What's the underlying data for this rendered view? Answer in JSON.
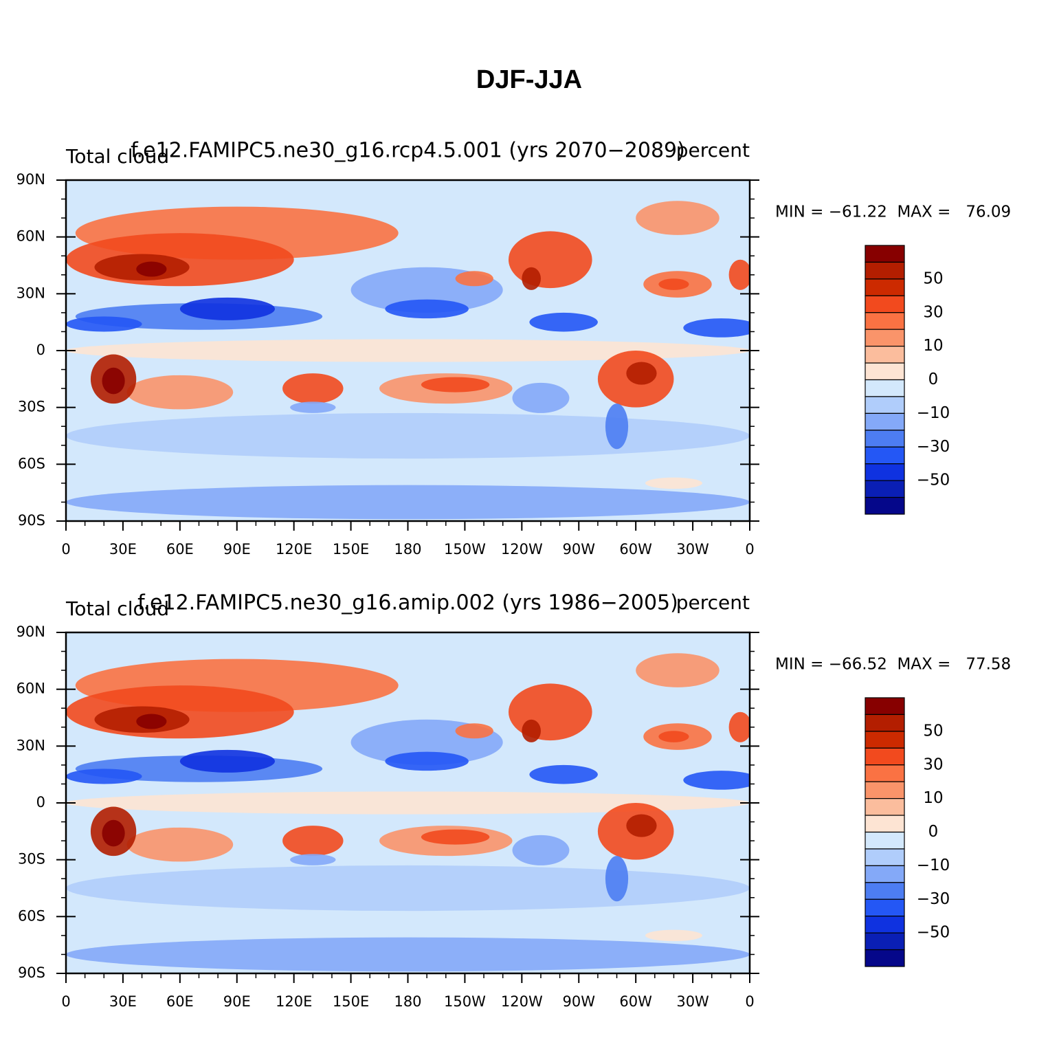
{
  "title": "DJF-JJA",
  "panels": [
    {
      "left_title": "Total cloud",
      "center_title": "f.e12.FAMIPC5.ne30_g16.rcp4.5.001 (yrs 2070−2089)",
      "right_title": "percent",
      "stats": "MIN = −61.22  MAX =   76.09"
    },
    {
      "left_title": "Total cloud",
      "center_title": "f.e12.FAMIPC5.ne30_g16.amip.002 (yrs 1986−2005)",
      "right_title": "percent",
      "stats": "MIN = −66.52  MAX =   77.58"
    }
  ],
  "lat_labels": [
    "90N",
    "60N",
    "30N",
    "0",
    "30S",
    "60S",
    "90S"
  ],
  "lon_labels": [
    "0",
    "30E",
    "60E",
    "90E",
    "120E",
    "150E",
    "180",
    "150W",
    "120W",
    "90W",
    "60W",
    "30W",
    "0"
  ],
  "colorbar": {
    "colors": [
      "#870000",
      "#b31e00",
      "#cc2a00",
      "#f24a1e",
      "#fa7243",
      "#fa946a",
      "#fbbd9d",
      "#fde4d3",
      "#d3e8fc",
      "#b0cdfb",
      "#84a9f8",
      "#4d7df2",
      "#2457f5",
      "#0f32e0",
      "#0a1fb5",
      "#05078a"
    ],
    "labels": [
      "50",
      "30",
      "10",
      "0",
      "−10",
      "−30",
      "−50"
    ]
  }
}
